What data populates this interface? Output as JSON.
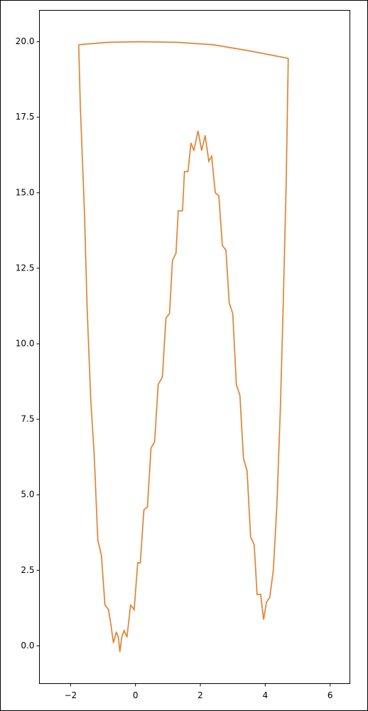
{
  "chart_data": {
    "type": "line",
    "series": [
      {
        "color": "#ff7f0e",
        "x": [
          -1.75,
          -1.7,
          -1.57,
          -1.49,
          -1.38,
          -1.27,
          -1.16,
          -1.05,
          -0.94,
          -0.83,
          -0.75,
          -0.68,
          -0.59,
          -0.53,
          -0.48,
          -0.42,
          -0.35,
          -0.26,
          -0.15,
          -0.04,
          0.07,
          0.15,
          0.26,
          0.37,
          0.48,
          0.59,
          0.7,
          0.83,
          0.94,
          1.05,
          1.14,
          1.25,
          1.32,
          1.45,
          1.51,
          1.62,
          1.71,
          1.8,
          1.93,
          2.04,
          2.15,
          2.26,
          2.35,
          2.46,
          2.57,
          2.68,
          2.79,
          2.89,
          3.0,
          3.11,
          3.22,
          3.33,
          3.44,
          3.55,
          3.66,
          3.75,
          3.86,
          3.95,
          4.04,
          4.14,
          4.25,
          4.36,
          4.47,
          4.56,
          4.65,
          4.71,
          3.5,
          2.4,
          1.3,
          0.2,
          -0.88,
          -1.75
        ],
        "values": [
          19.9,
          17.9,
          14.3,
          11.2,
          8.2,
          6.3,
          3.5,
          3.0,
          1.35,
          1.2,
          0.65,
          0.1,
          0.45,
          0.3,
          -0.2,
          0.3,
          0.5,
          0.3,
          1.35,
          1.2,
          2.75,
          2.75,
          4.5,
          4.6,
          6.55,
          6.75,
          8.65,
          8.9,
          10.85,
          11.0,
          12.75,
          13.0,
          14.4,
          14.4,
          15.7,
          15.7,
          16.65,
          16.4,
          17.05,
          16.4,
          16.9,
          16.05,
          16.2,
          15.0,
          14.9,
          13.25,
          13.1,
          11.35,
          11.0,
          8.65,
          8.3,
          6.2,
          5.8,
          3.6,
          3.35,
          1.7,
          1.7,
          0.87,
          1.45,
          1.6,
          2.5,
          4.65,
          7.95,
          11.5,
          15.5,
          19.45,
          19.7,
          19.9,
          19.98,
          20.0,
          19.98,
          19.9
        ]
      }
    ],
    "xlim": [
      -2.96,
      6.61
    ],
    "xticks": [
      {
        "value": -2,
        "label": "−2"
      },
      0,
      2,
      4,
      6
    ],
    "ylim": [
      -1.25,
      21.04
    ],
    "yticks": [
      {
        "value": 0,
        "label": "0.0"
      },
      {
        "value": 2.5,
        "label": "2.5"
      },
      {
        "value": 5,
        "label": "5.0"
      },
      {
        "value": 7.5,
        "label": "7.5"
      },
      {
        "value": 10,
        "label": "10.0"
      },
      {
        "value": 12.5,
        "label": "12.5"
      },
      {
        "value": 15,
        "label": "15.0"
      },
      {
        "value": 17.5,
        "label": "17.5"
      },
      {
        "value": 20,
        "label": "20.0"
      }
    ]
  }
}
